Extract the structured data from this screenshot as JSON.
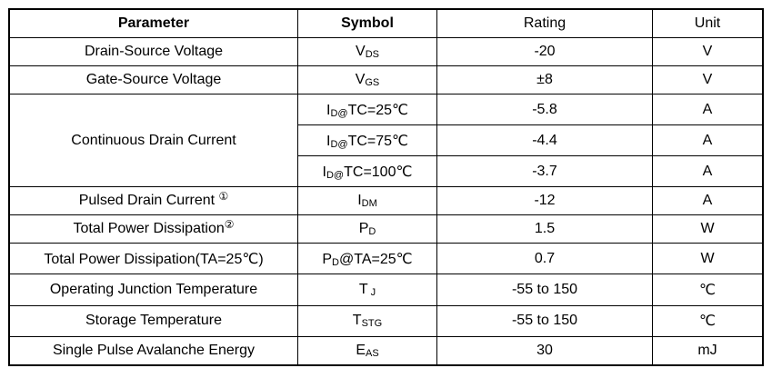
{
  "page": {
    "background_color": "#ffffff",
    "border_color": "#000000",
    "text_color": "#000000"
  },
  "table": {
    "headers": {
      "parameter": "Parameter",
      "symbol": "Symbol",
      "rating": "Rating",
      "unit": "Unit"
    },
    "rows": [
      {
        "parameter": "Drain-Source Voltage",
        "symbol_pre": "V",
        "symbol_sub": "DS",
        "symbol_post": "",
        "rating": "-20",
        "unit": "V"
      },
      {
        "parameter": "Gate-Source Voltage",
        "symbol_pre": "V",
        "symbol_sub": "GS",
        "symbol_post": "",
        "rating": "±8",
        "unit": "V"
      },
      {
        "parameter": "Continuous Drain Current",
        "parameter_rowspan": "3",
        "symbol_pre": "I",
        "symbol_sub": "D@",
        "symbol_post": "TC=25℃",
        "rating": "-5.8",
        "unit": "A"
      },
      {
        "symbol_pre": "I",
        "symbol_sub": "D@",
        "symbol_post": "TC=75℃",
        "rating": "-4.4",
        "unit": "A"
      },
      {
        "symbol_pre": "I",
        "symbol_sub": "D@",
        "symbol_post": "TC=100℃",
        "rating": "-3.7",
        "unit": "A"
      },
      {
        "parameter": "Pulsed Drain Current ",
        "parameter_sup": "①",
        "symbol_pre": "I",
        "symbol_sub": "DM",
        "symbol_post": "",
        "rating": "-12",
        "unit": "A"
      },
      {
        "parameter": "Total Power Dissipation",
        "parameter_sup": "②",
        "symbol_pre": "P",
        "symbol_sub": "D",
        "symbol_post": "",
        "rating": "1.5",
        "unit": "W"
      },
      {
        "parameter": "Total Power Dissipation(TA=25℃)",
        "symbol_pre": "P",
        "symbol_sub": "D",
        "symbol_post": "@TA=25℃",
        "rating": "0.7",
        "unit": "W"
      },
      {
        "parameter": "Operating Junction Temperature",
        "symbol_pre": "T",
        "symbol_sub": " J",
        "symbol_post": "",
        "rating": "-55 to 150",
        "unit": "℃"
      },
      {
        "parameter": "Storage Temperature",
        "symbol_pre": "T",
        "symbol_sub": "STG",
        "symbol_post": "",
        "rating": "-55 to 150",
        "unit": "℃"
      },
      {
        "parameter": "Single Pulse Avalanche Energy",
        "symbol_pre": "E",
        "symbol_sub": "AS",
        "symbol_post": "",
        "rating": "30",
        "unit": "mJ"
      }
    ]
  }
}
